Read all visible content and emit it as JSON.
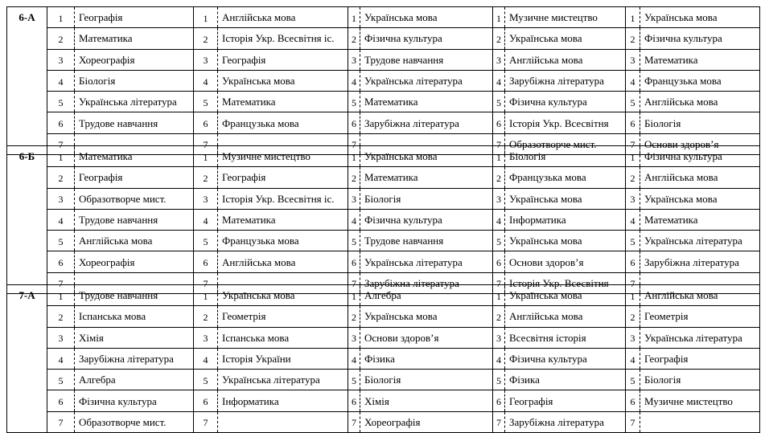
{
  "lesson_numbers": [
    "1",
    "2",
    "3",
    "4",
    "5",
    "6",
    "7"
  ],
  "classes": [
    {
      "name": "6-А",
      "days": [
        [
          "Географія",
          "Математика",
          "Хореографія",
          "Біологія",
          "Українська література",
          "Трудове навчання",
          ""
        ],
        [
          "Англійська мова",
          "Історія Укр. Всесвітня іс.",
          "Географія",
          "Українська мова",
          "Математика",
          "Французька мова",
          ""
        ],
        [
          "Українська мова",
          "Фізична культура",
          "Трудове навчання",
          "Українська література",
          "Математика",
          "Зарубіжна  література",
          ""
        ],
        [
          "Музичне мистецтво",
          "Українська мова",
          "Англійська мова",
          "Зарубіжна література",
          "Фізична культура",
          "Історія Укр. Всесвітня",
          "Образотворче мист."
        ],
        [
          "Українська мова",
          "Фізична культура",
          "Математика",
          "Французька мова",
          "Англійська мова",
          "Біологія",
          "Основи здоров’я"
        ]
      ]
    },
    {
      "name": "6-Б",
      "days": [
        [
          "Математика",
          "Географія",
          "Образотворче мист.",
          "Трудове навчання",
          "Англійська мова",
          "Хореографія",
          ""
        ],
        [
          "Музичне мистецтво",
          "Географія",
          "Історія Укр. Всесвітня іс.",
          "Математика",
          "Французька мова",
          "Англійська мова",
          ""
        ],
        [
          "Українська мова",
          "Математика",
          "Біологія",
          "Фізична культура",
          "Трудове навчання",
          "Українська література",
          "Зарубіжна література"
        ],
        [
          "Біологія",
          "Французька мова",
          "Українська мова",
          "Інформатика",
          "Українська мова",
          "Основи здоров’я",
          "Історія Укр. Всесвітня"
        ],
        [
          "Фізична культура",
          "Англійська мова",
          "Українська мова",
          "Математика",
          "Українська література",
          "Зарубіжна література",
          ""
        ]
      ]
    },
    {
      "name": "7-А",
      "days": [
        [
          "Трудове навчання",
          "Іспанська мова",
          "Хімія",
          "Зарубіжна література",
          "Алгебра",
          "Фізична культура",
          "Образотворче мист."
        ],
        [
          "Українська мова",
          "Геометрія",
          "Іспанська мова",
          "Історія України",
          "Українська література",
          "Інформатика",
          ""
        ],
        [
          "Алгебра",
          "Українська мова",
          "Основи здоров’я",
          "Фізика",
          "Біологія",
          "Хімія",
          "Хореографія"
        ],
        [
          "Українська мова",
          "Англійська мова",
          "Всесвітня історія",
          "Фізична культура",
          "Фізика",
          "Географія",
          "Зарубіжна література"
        ],
        [
          "Англійська мова",
          "Геометрія",
          "Українська література",
          "Географія",
          "Біологія",
          "Музичне мистецтво",
          ""
        ]
      ]
    }
  ]
}
